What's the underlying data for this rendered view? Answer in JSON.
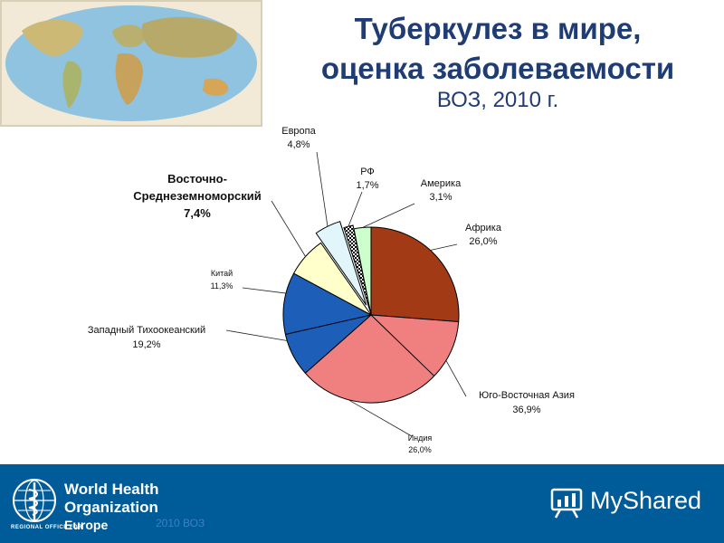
{
  "title_line1": "Туберкулез в мире,",
  "title_line2": "оценка заболеваемости",
  "subtitle": "ВОЗ, 2010 г.",
  "chart_data": {
    "type": "pie",
    "slices": [
      {
        "key": "africa",
        "label": "Африка",
        "value_text": "26,0%",
        "value": 26.0,
        "color": "#a23a16"
      },
      {
        "key": "sea",
        "label": "Юго-Восточная Азия",
        "value_text": "36,9%",
        "value": 36.9,
        "color": "#f08080"
      },
      {
        "key": "wp",
        "label": "Западный Тихоокеанский",
        "value_text": "19,2%",
        "value": 19.2,
        "color": "#1c5eb8"
      },
      {
        "key": "emro",
        "label_line1": "Восточно-",
        "label_line2": "Среднеземноморский",
        "value_text": "7,4%",
        "value": 7.4,
        "color": "#ffffcc"
      },
      {
        "key": "europe",
        "label": "Европа",
        "value_text": "4,8%",
        "value": 4.8,
        "color": "#e0f6fb"
      },
      {
        "key": "rf",
        "label": "РФ",
        "value_text": "1,7%",
        "value": 1.7,
        "color": "#ffffff"
      },
      {
        "key": "americas",
        "label": "Америка",
        "value_text": "3,1%",
        "value": 3.1,
        "color": "#ccffcc"
      }
    ],
    "sub_slices": [
      {
        "key": "india",
        "label": "Индия",
        "value_text": "26,0%",
        "value": 26.0,
        "parent": "sea"
      },
      {
        "key": "china",
        "label": "Китай",
        "value_text": "11,3%",
        "value": 11.3,
        "parent": "wp"
      }
    ]
  },
  "footer": {
    "org_line1": "World Health",
    "org_line2": "Organization",
    "regional": "REGIONAL OFFICE FOR",
    "region": "Europe",
    "faint_text": "2010 ВОЗ",
    "watermark": "MyShared",
    "bg_color": "#005c99"
  }
}
